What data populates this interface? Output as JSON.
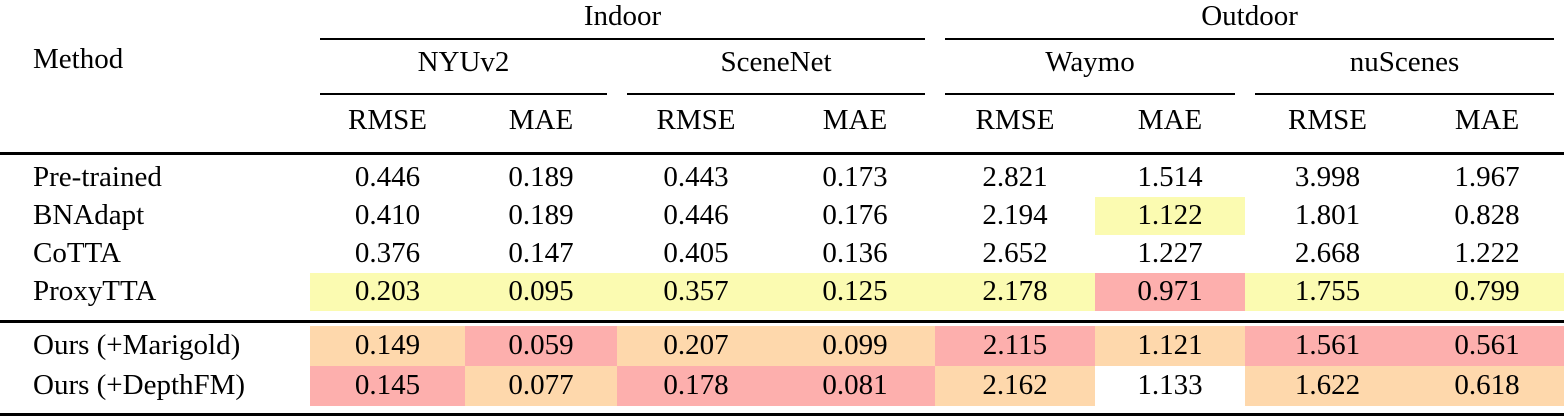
{
  "colors": {
    "yellow": "#FBFBB1",
    "orange": "#FED8AC",
    "pink": "#FDAFAD",
    "rule": "#000000",
    "text": "#000000"
  },
  "table": {
    "method_header": "Method",
    "groups": [
      {
        "label": "Indoor"
      },
      {
        "label": "Outdoor"
      }
    ],
    "dataset_headers": [
      "NYUv2",
      "SceneNet",
      "Waymo",
      "nuScenes"
    ],
    "metric_headers": [
      "RMSE",
      "MAE",
      "RMSE",
      "MAE",
      "RMSE",
      "MAE",
      "RMSE",
      "MAE"
    ],
    "sections": {
      "baselines": [
        {
          "method": "Pre-trained",
          "values": [
            "0.446",
            "0.189",
            "0.443",
            "0.173",
            "2.821",
            "1.514",
            "3.998",
            "1.967"
          ],
          "highlights": [
            null,
            null,
            null,
            null,
            null,
            null,
            null,
            null
          ]
        },
        {
          "method": "BNAdapt",
          "values": [
            "0.410",
            "0.189",
            "0.446",
            "0.176",
            "2.194",
            "1.122",
            "1.801",
            "0.828"
          ],
          "highlights": [
            null,
            null,
            null,
            null,
            null,
            "yellow",
            null,
            null
          ]
        },
        {
          "method": "CoTTA",
          "values": [
            "0.376",
            "0.147",
            "0.405",
            "0.136",
            "2.652",
            "1.227",
            "2.668",
            "1.222"
          ],
          "highlights": [
            null,
            null,
            null,
            null,
            null,
            null,
            null,
            null
          ]
        },
        {
          "method": "ProxyTTA",
          "values": [
            "0.203",
            "0.095",
            "0.357",
            "0.125",
            "2.178",
            "0.971",
            "1.755",
            "0.799"
          ],
          "highlights": [
            "yellow",
            "yellow",
            "yellow",
            "yellow",
            "yellow",
            "pink",
            "yellow",
            "yellow"
          ]
        }
      ],
      "ours": [
        {
          "method": "Ours (+Marigold)",
          "values": [
            "0.149",
            "0.059",
            "0.207",
            "0.099",
            "2.115",
            "1.121",
            "1.561",
            "0.561"
          ],
          "highlights": [
            "orange",
            "pink",
            "orange",
            "orange",
            "pink",
            "orange",
            "pink",
            "pink"
          ]
        },
        {
          "method": "Ours (+DepthFM)",
          "values": [
            "0.145",
            "0.077",
            "0.178",
            "0.081",
            "2.162",
            "1.133",
            "1.622",
            "0.618"
          ],
          "highlights": [
            "pink",
            "orange",
            "pink",
            "pink",
            "orange",
            null,
            "orange",
            "orange"
          ]
        }
      ]
    }
  }
}
